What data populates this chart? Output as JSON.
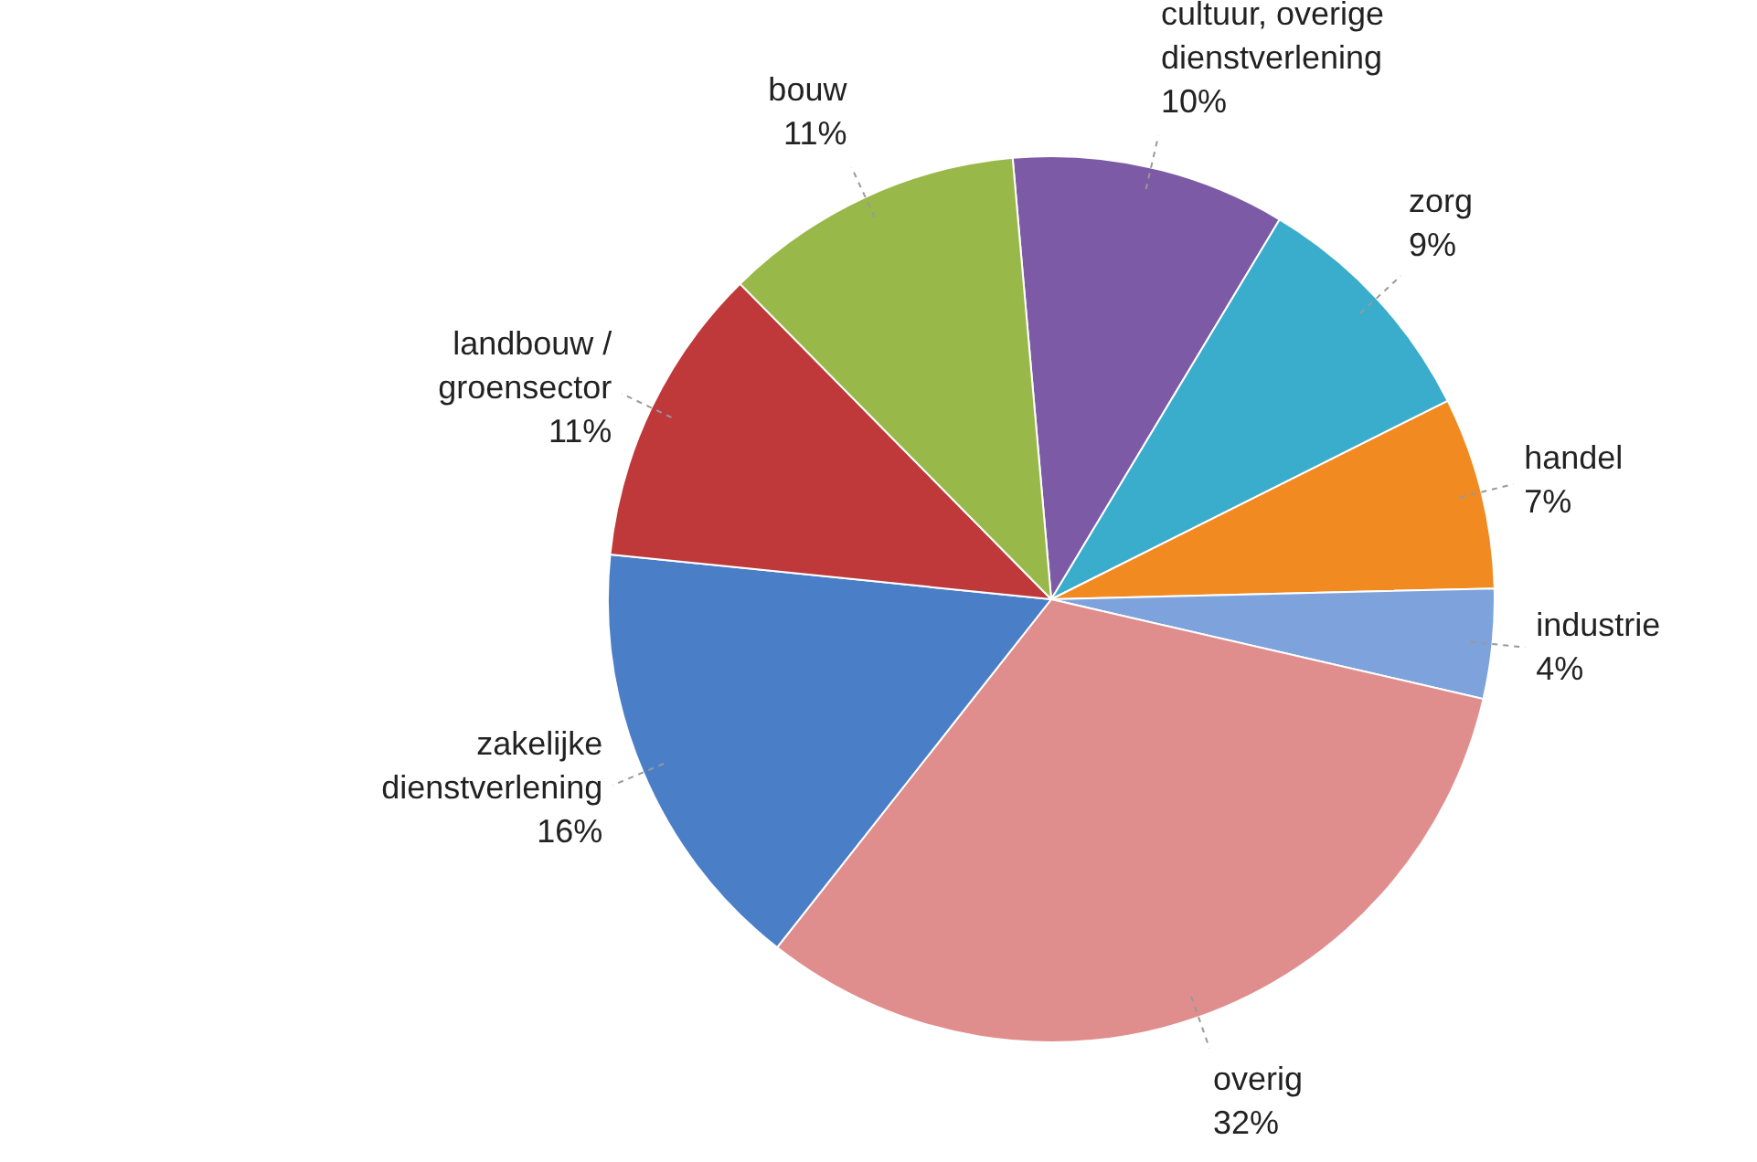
{
  "chart_data": {
    "type": "pie",
    "categories": [
      "cultuur, overige dienstverlening",
      "zorg",
      "handel",
      "industrie",
      "overig",
      "zakelijke dienstverlening",
      "landbouw / groensector",
      "bouw"
    ],
    "values": [
      10,
      9,
      7,
      4,
      32,
      16,
      11,
      11
    ],
    "value_labels": [
      "10%",
      "9%",
      "7%",
      "4%",
      "32%",
      "16%",
      "11%",
      "11%"
    ],
    "colors": [
      "#7d5aa6",
      "#3aaccc",
      "#f28a22",
      "#7ea3dc",
      "#e08e8d",
      "#4a7fc8",
      "#c0393a",
      "#98b94a"
    ],
    "legend": false
  }
}
